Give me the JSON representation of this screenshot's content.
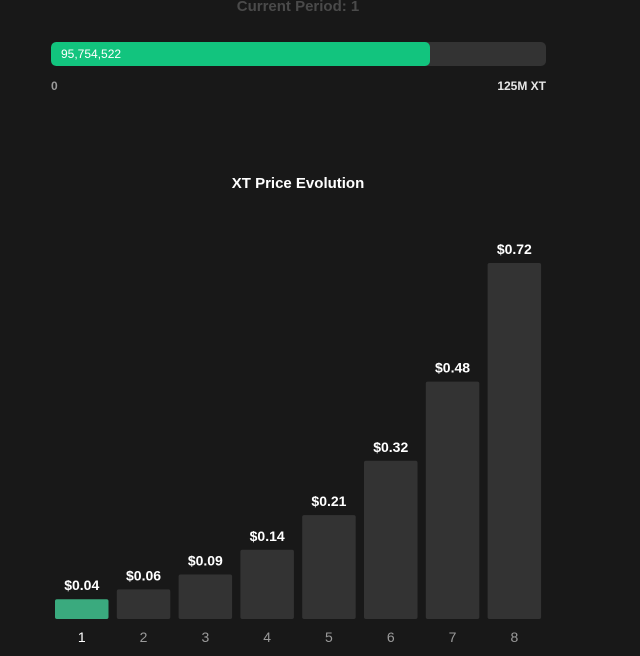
{
  "header": {
    "current_period_label": "Current Period: 1"
  },
  "progress": {
    "value_text": "95,754,522",
    "value": 95754522,
    "max": 125000000,
    "min_label": "0",
    "max_label": "125M XT",
    "fill_color": "#12c47e",
    "track_color": "#333333"
  },
  "chart_data": {
    "type": "bar",
    "title": "XT Price Evolution",
    "categories": [
      "1",
      "2",
      "3",
      "4",
      "5",
      "6",
      "7",
      "8"
    ],
    "values": [
      0.04,
      0.06,
      0.09,
      0.14,
      0.21,
      0.32,
      0.48,
      0.72
    ],
    "value_labels": [
      "$0.04",
      "$0.06",
      "$0.09",
      "$0.14",
      "$0.21",
      "$0.32",
      "$0.48",
      "$0.72"
    ],
    "active_index": 0,
    "active_color": "#3aaa7e",
    "bar_color": "#333333",
    "ylim": [
      0,
      0.72
    ],
    "grid": false
  }
}
